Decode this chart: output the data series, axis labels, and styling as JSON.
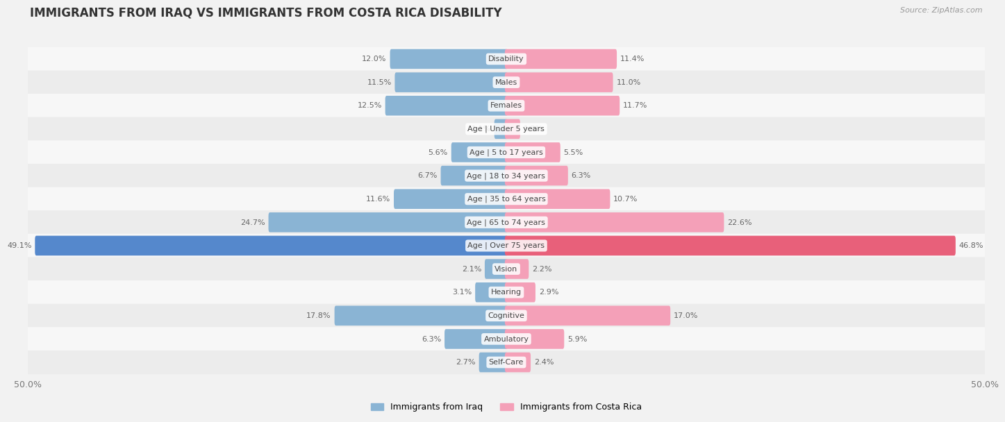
{
  "title": "IMMIGRANTS FROM IRAQ VS IMMIGRANTS FROM COSTA RICA DISABILITY",
  "source": "Source: ZipAtlas.com",
  "categories": [
    "Disability",
    "Males",
    "Females",
    "Age | Under 5 years",
    "Age | 5 to 17 years",
    "Age | 18 to 34 years",
    "Age | 35 to 64 years",
    "Age | 65 to 74 years",
    "Age | Over 75 years",
    "Vision",
    "Hearing",
    "Cognitive",
    "Ambulatory",
    "Self-Care"
  ],
  "iraq_values": [
    12.0,
    11.5,
    12.5,
    1.1,
    5.6,
    6.7,
    11.6,
    24.7,
    49.1,
    2.1,
    3.1,
    17.8,
    6.3,
    2.7
  ],
  "costa_rica_values": [
    11.4,
    11.0,
    11.7,
    1.3,
    5.5,
    6.3,
    10.7,
    22.6,
    46.8,
    2.2,
    2.9,
    17.0,
    5.9,
    2.4
  ],
  "iraq_color": "#8ab4d4",
  "costa_rica_color": "#f4a0b8",
  "iraq_highlight_color": "#5588cc",
  "costa_rica_highlight_color": "#e8607a",
  "bar_height": 0.55,
  "max_value": 50.0,
  "row_color_light": "#f7f7f7",
  "row_color_dark": "#ececec",
  "title_fontsize": 12,
  "label_fontsize": 8,
  "cat_fontsize": 8,
  "legend_fontsize": 9,
  "source_fontsize": 8,
  "value_color": "#666666",
  "cat_label_color": "#444444"
}
